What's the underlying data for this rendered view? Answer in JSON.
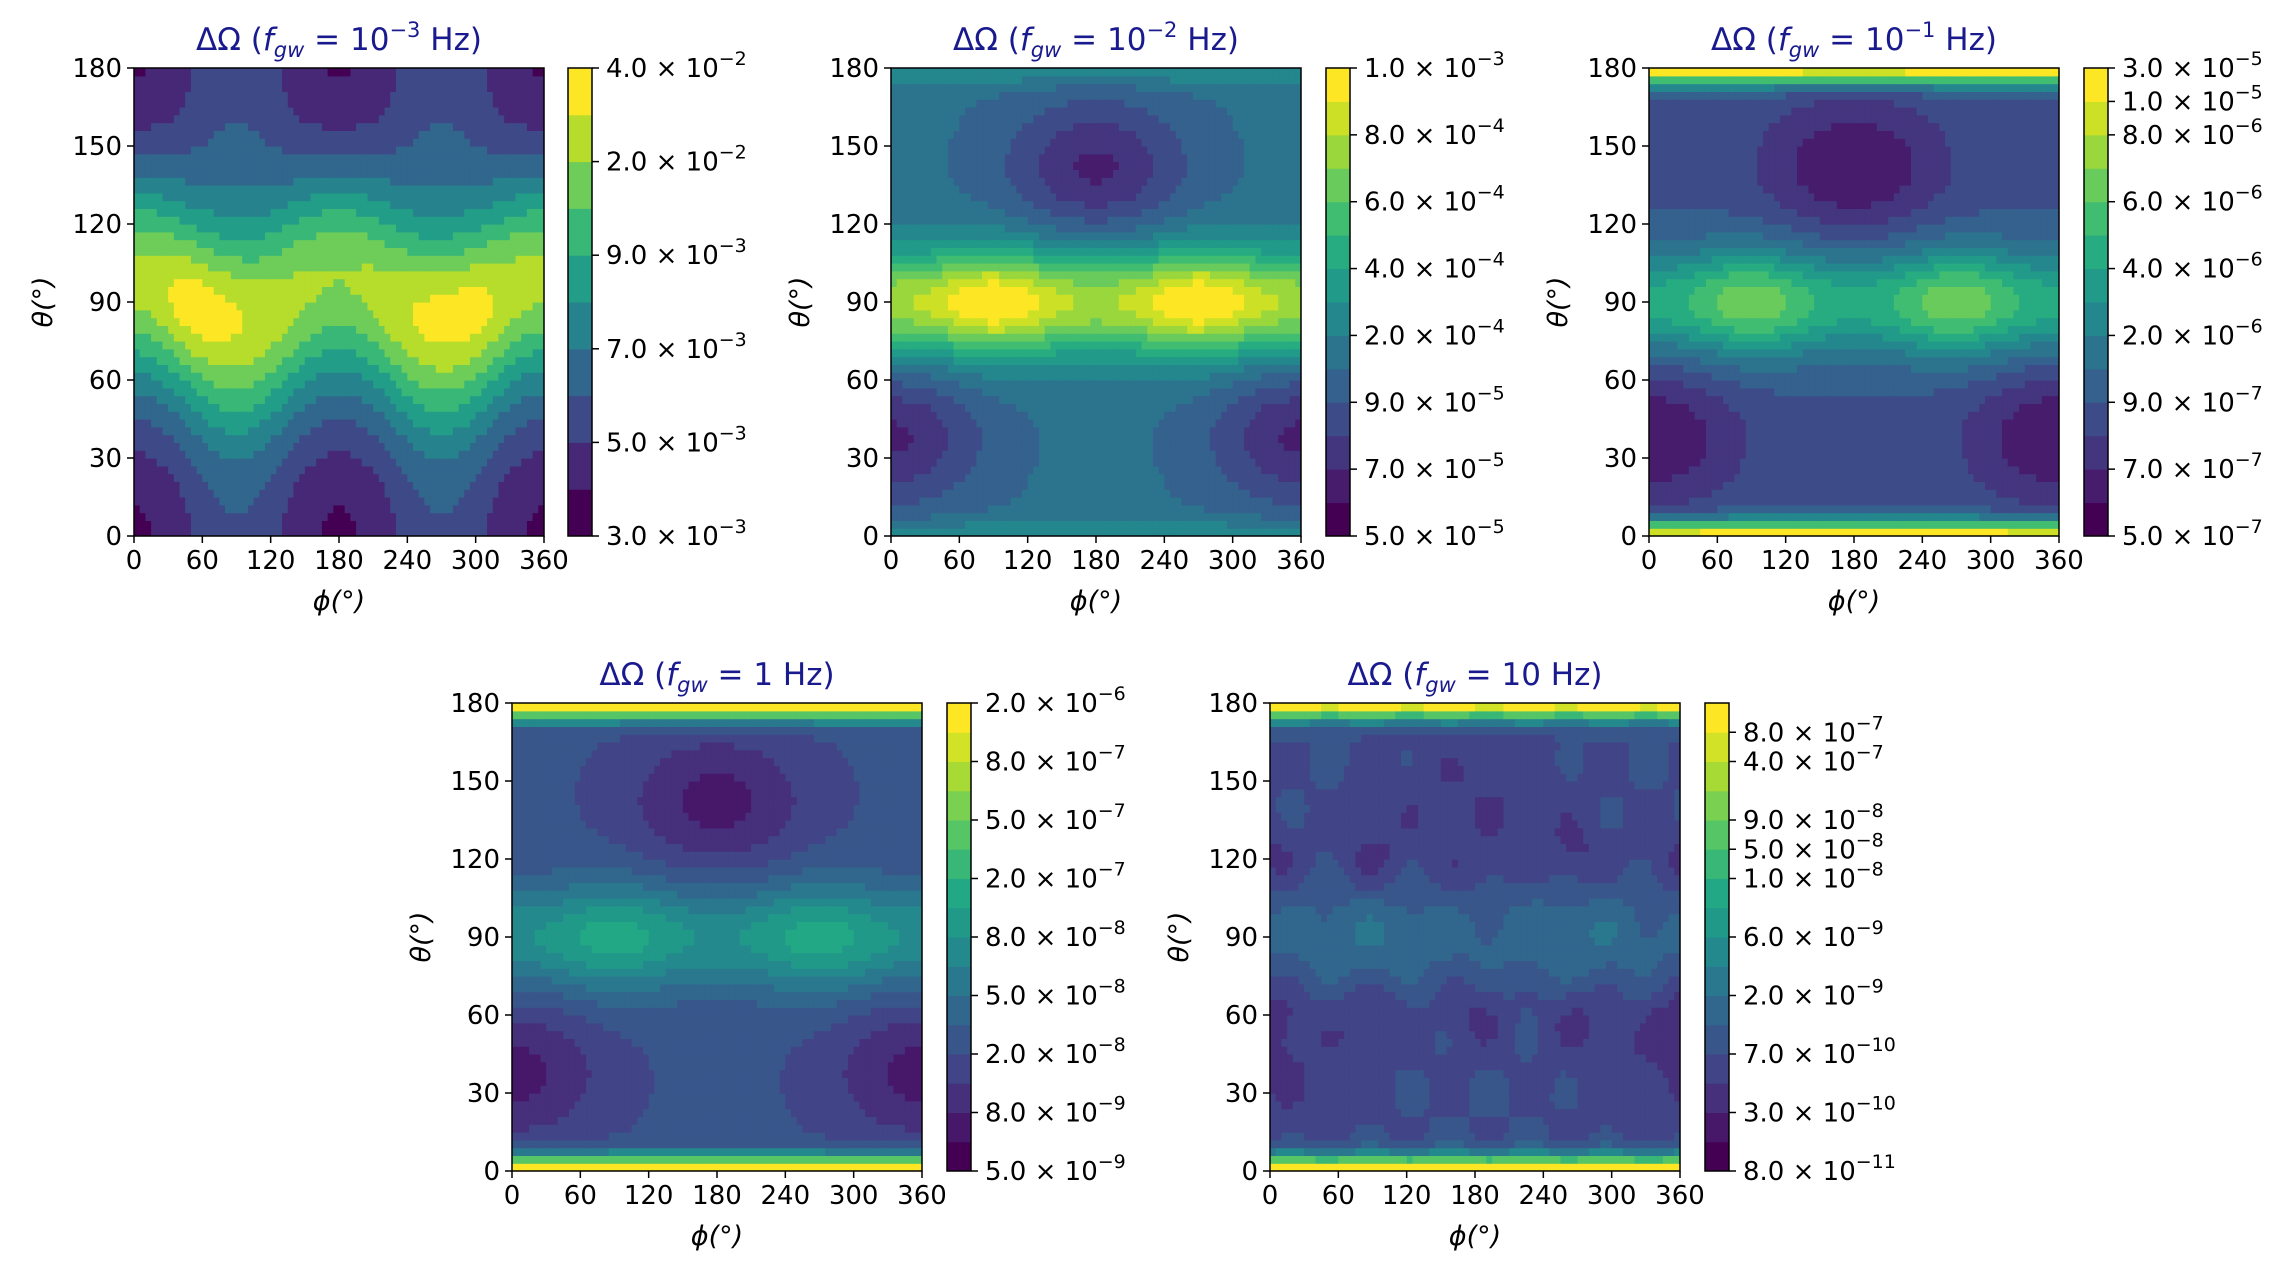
{
  "figure_title": "",
  "chart_data": [
    {
      "type": "heatmap",
      "title_prefix": "ΔΩ (",
      "title_sub": "f",
      "title_subscript": "gw",
      "title_eq": " = ",
      "title_value": "10",
      "title_exp": "−3",
      "title_suffix": " Hz)",
      "xlabel": "ϕ(°)",
      "ylabel": "θ(°)",
      "xticks": [
        "0",
        "60",
        "120",
        "180",
        "240",
        "300",
        "360"
      ],
      "yticks": [
        "0",
        "30",
        "60",
        "90",
        "120",
        "150",
        "180"
      ],
      "xlim": [
        0,
        360
      ],
      "ylim": [
        0,
        180
      ],
      "colorbar": {
        "levels": 10,
        "tick_mantissas": [
          "3.0",
          "5.0",
          "7.0",
          "9.0",
          "2.0",
          "4.0"
        ],
        "tick_exponents": [
          "−3",
          "−3",
          "−3",
          "−3",
          "−2",
          "−2"
        ],
        "tick_levels": [
          0,
          2,
          4,
          6,
          8,
          10
        ]
      },
      "pattern": {
        "base": 4.2,
        "equator_amp": 4.4,
        "equator_width": 28,
        "lobe_amp": 1.3,
        "lobe_phi": [
          60,
          280
        ],
        "band_shift": 12,
        "caps": 0,
        "pole_lobe_amp": 0,
        "center_dip": 0,
        "noise": 0
      }
    },
    {
      "type": "heatmap",
      "title_prefix": "ΔΩ (",
      "title_sub": "f",
      "title_subscript": "gw",
      "title_eq": " = ",
      "title_value": "10",
      "title_exp": "−2",
      "title_suffix": " Hz)",
      "xlabel": "ϕ(°)",
      "ylabel": "θ(°)",
      "xticks": [
        "0",
        "60",
        "120",
        "180",
        "240",
        "300",
        "360"
      ],
      "yticks": [
        "0",
        "30",
        "60",
        "90",
        "120",
        "150",
        "180"
      ],
      "xlim": [
        0,
        360
      ],
      "ylim": [
        0,
        180
      ],
      "colorbar": {
        "levels": 14,
        "tick_mantissas": [
          "5.0",
          "7.0",
          "9.0",
          "2.0",
          "4.0",
          "6.0",
          "8.0",
          "1.0"
        ],
        "tick_exponents": [
          "−5",
          "−5",
          "−5",
          "−4",
          "−4",
          "−4",
          "−4",
          "−3"
        ],
        "tick_levels": [
          0,
          2,
          4,
          6,
          8,
          10,
          12,
          14
        ]
      },
      "pattern": {
        "base": 5.2,
        "equator_amp": 6.5,
        "equator_width": 14,
        "lobe_amp": 2.5,
        "lobe_phi": [
          90,
          270
        ],
        "band_shift": 0,
        "caps": 1.8,
        "pole_lobe_amp": 3.4,
        "center_dip": 0,
        "noise": 0
      }
    },
    {
      "type": "heatmap",
      "title_prefix": "ΔΩ (",
      "title_sub": "f",
      "title_subscript": "gw",
      "title_eq": " = ",
      "title_value": "10",
      "title_exp": "−1",
      "title_suffix": " Hz)",
      "xlabel": "ϕ(°)",
      "ylabel": "θ(°)",
      "xticks": [
        "0",
        "60",
        "120",
        "180",
        "240",
        "300",
        "360"
      ],
      "yticks": [
        "0",
        "30",
        "60",
        "90",
        "120",
        "150",
        "180"
      ],
      "xlim": [
        0,
        360
      ],
      "ylim": [
        0,
        180
      ],
      "colorbar": {
        "levels": 14,
        "tick_mantissas": [
          "5.0",
          "7.0",
          "9.0",
          "2.0",
          "4.0",
          "6.0",
          "8.0",
          "1.0",
          "3.0"
        ],
        "tick_exponents": [
          "−7",
          "−7",
          "−7",
          "−6",
          "−6",
          "−6",
          "−6",
          "−5",
          "−5"
        ],
        "tick_levels": [
          0,
          2,
          4,
          6,
          8,
          10,
          12,
          13,
          14
        ]
      },
      "pattern": {
        "base": 3.8,
        "equator_amp": 4.6,
        "equator_width": 14,
        "lobe_amp": 2.5,
        "lobe_phi": [
          90,
          270
        ],
        "band_shift": 0,
        "caps": 10,
        "pole_lobe_amp": 2.8,
        "center_dip": 0,
        "noise": 0
      }
    },
    {
      "type": "heatmap",
      "title_prefix": "ΔΩ (",
      "title_sub": "f",
      "title_subscript": "gw",
      "title_eq": " = ",
      "title_value": "1",
      "title_exp": "",
      "title_suffix": " Hz)",
      "xlabel": "ϕ(°)",
      "ylabel": "θ(°)",
      "xticks": [
        "0",
        "60",
        "120",
        "180",
        "240",
        "300",
        "360"
      ],
      "yticks": [
        "0",
        "30",
        "60",
        "90",
        "120",
        "150",
        "180"
      ],
      "xlim": [
        0,
        360
      ],
      "ylim": [
        0,
        180
      ],
      "colorbar": {
        "levels": 16,
        "tick_mantissas": [
          "5.0",
          "8.0",
          "2.0",
          "5.0",
          "8.0",
          "2.0",
          "5.0",
          "8.0",
          "2.0"
        ],
        "tick_exponents": [
          "−9",
          "−9",
          "−8",
          "−8",
          "−8",
          "−7",
          "−7",
          "−7",
          "−6"
        ],
        "tick_levels": [
          0,
          2,
          4,
          6,
          8,
          10,
          12,
          14,
          16
        ]
      },
      "pattern": {
        "base": 4.2,
        "equator_amp": 3.6,
        "equator_width": 14,
        "lobe_amp": 1.8,
        "lobe_phi": [
          90,
          270
        ],
        "band_shift": 0,
        "caps": 12,
        "pole_lobe_amp": 2.6,
        "center_dip": 0,
        "noise": 0
      }
    },
    {
      "type": "heatmap",
      "title_prefix": "ΔΩ (",
      "title_sub": "f",
      "title_subscript": "gw",
      "title_eq": " = ",
      "title_value": "10",
      "title_exp": "",
      "title_suffix": " Hz)",
      "xlabel": "ϕ(°)",
      "ylabel": "θ(°)",
      "xticks": [
        "0",
        "60",
        "120",
        "180",
        "240",
        "300",
        "360"
      ],
      "yticks": [
        "0",
        "30",
        "60",
        "90",
        "120",
        "150",
        "180"
      ],
      "xlim": [
        0,
        360
      ],
      "ylim": [
        0,
        180
      ],
      "colorbar": {
        "levels": 16,
        "tick_mantissas": [
          "8.0",
          "3.0",
          "7.0",
          "2.0",
          "6.0",
          "1.0",
          "5.0",
          "9.0",
          "4.0",
          "8.0"
        ],
        "tick_exponents": [
          "−11",
          "−10",
          "−10",
          "−9",
          "−9",
          "−8",
          "−8",
          "−8",
          "−7",
          "−7"
        ],
        "tick_levels": [
          0,
          2,
          4,
          6,
          8,
          10,
          11,
          12,
          14,
          15
        ]
      },
      "pattern": {
        "base": 4.0,
        "equator_amp": 1.2,
        "equator_width": 14,
        "lobe_amp": 0.8,
        "lobe_phi": [
          90,
          270
        ],
        "band_shift": 0,
        "caps": 12,
        "pole_lobe_amp": 1.0,
        "center_dip": 1.2,
        "noise": 1
      }
    }
  ],
  "colors": {
    "viridis": [
      "#440154",
      "#482475",
      "#414487",
      "#355f8d",
      "#2a788e",
      "#21918c",
      "#22a884",
      "#44bf70",
      "#7ad151",
      "#bddf26",
      "#fde725"
    ],
    "title_color": "#1a1a8f"
  }
}
